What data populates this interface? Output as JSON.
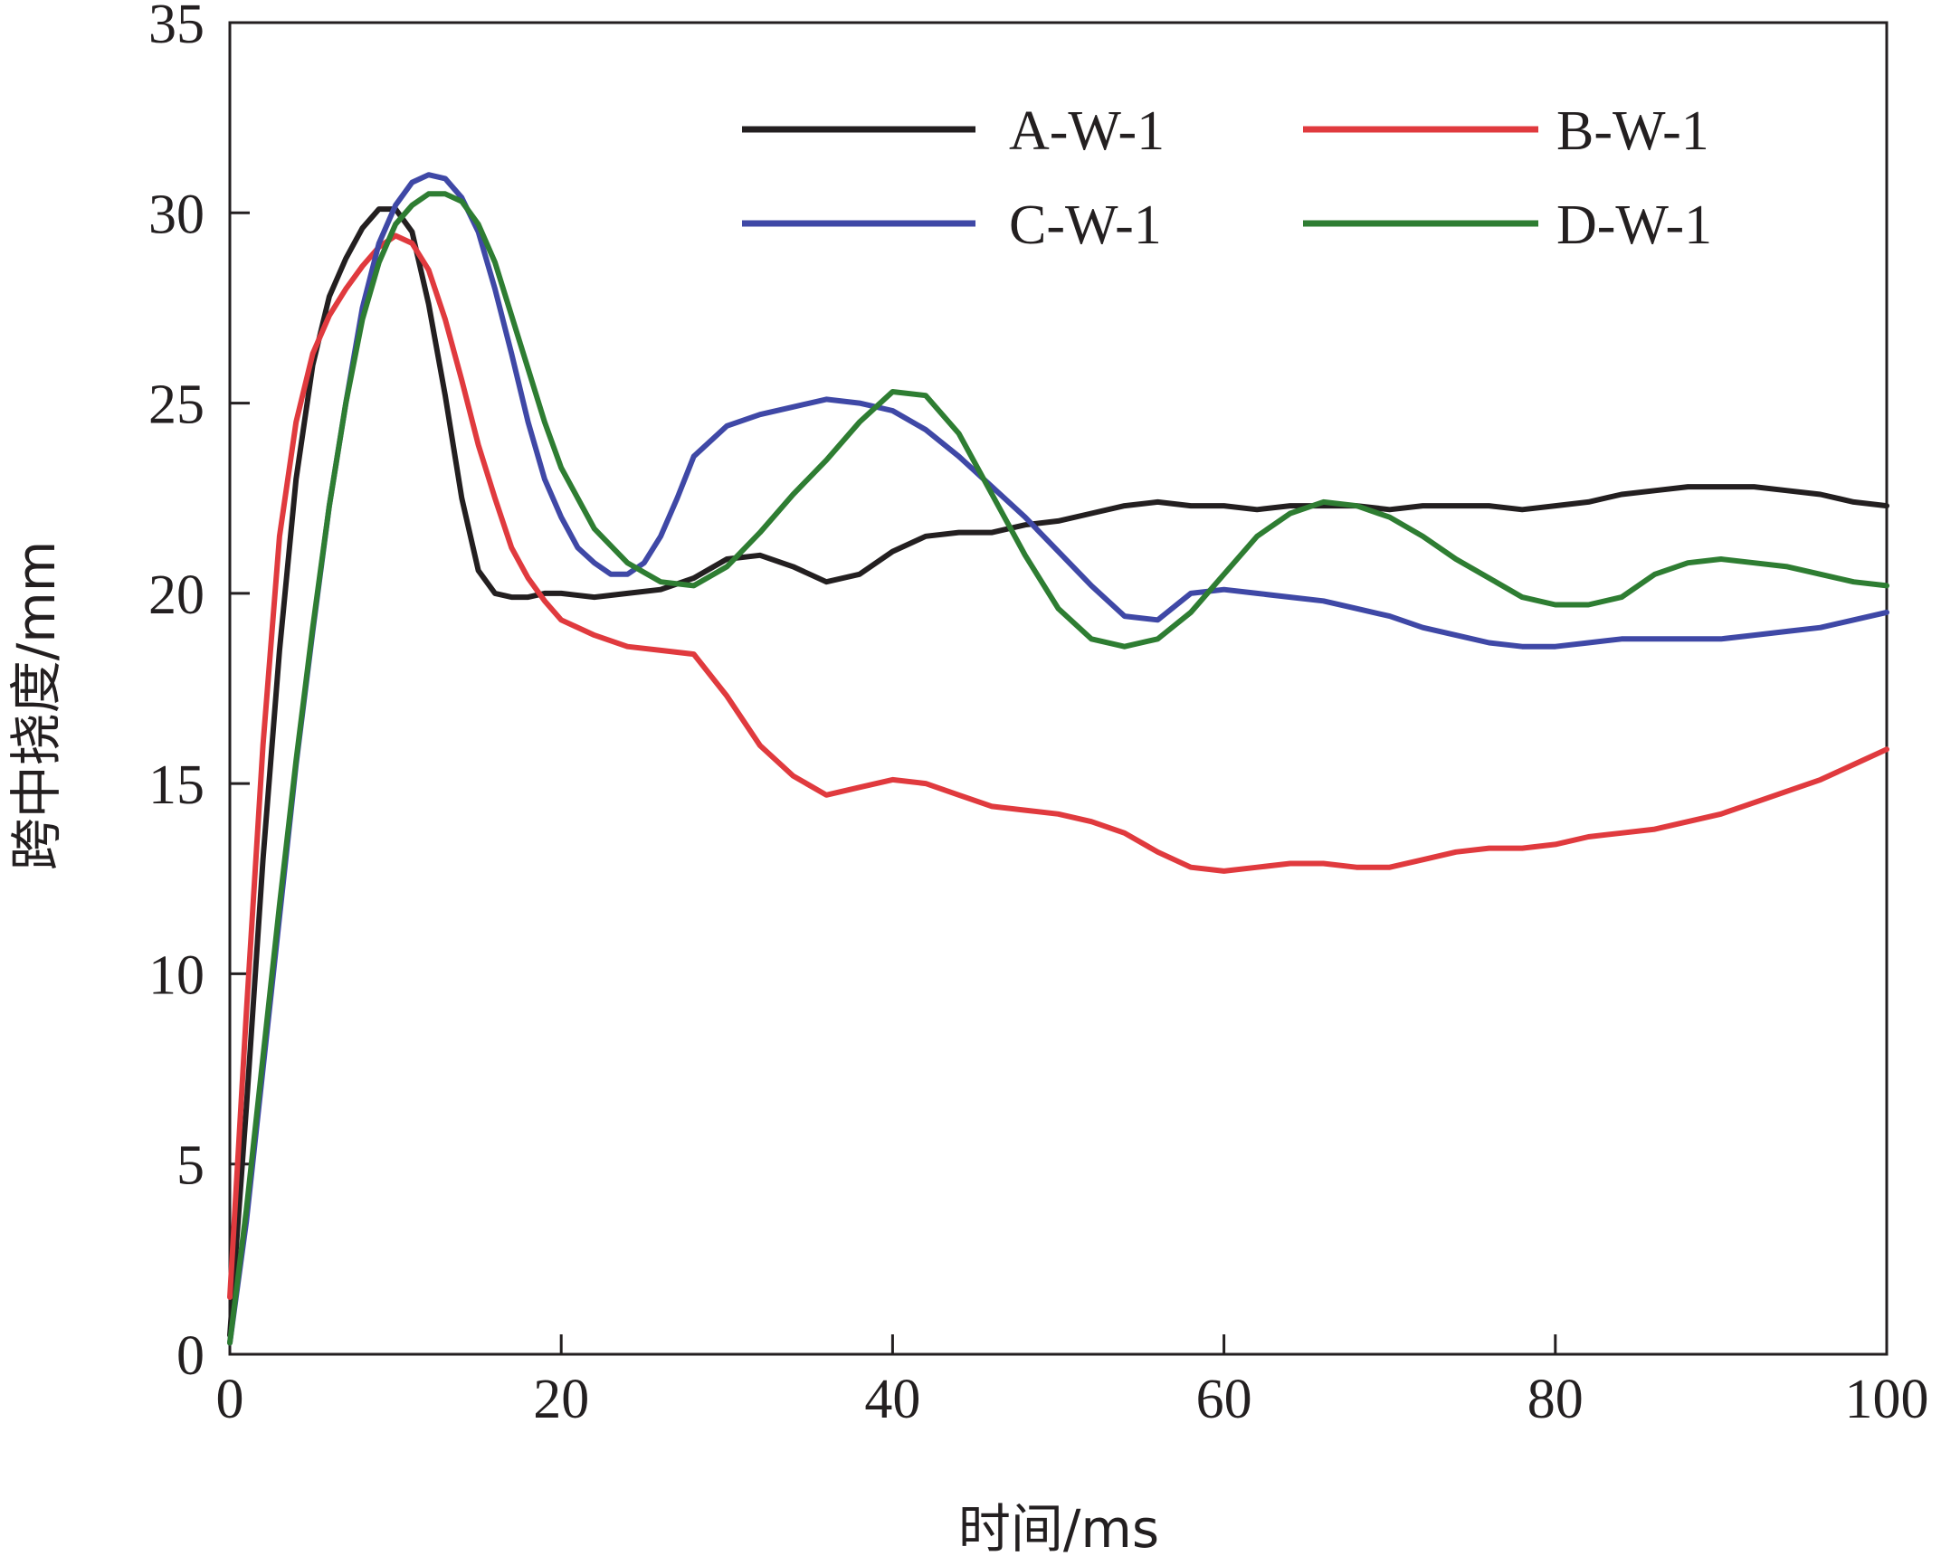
{
  "chart_data": {
    "type": "line",
    "xlabel": "时间/ms",
    "ylabel": "跨中挠度/mm",
    "xlim": [
      0,
      100
    ],
    "ylim": [
      0,
      35
    ],
    "xticks": [
      "0",
      "20",
      "40",
      "60",
      "80",
      "100"
    ],
    "yticks": [
      "0",
      "5",
      "10",
      "15",
      "20",
      "25",
      "30",
      "35"
    ],
    "grid": false,
    "legend_position": "top-right",
    "series": [
      {
        "name": "A-W-1",
        "color": "#231f20",
        "x": [
          0,
          1,
          2,
          3,
          4,
          5,
          6,
          7,
          8,
          9,
          10,
          11,
          12,
          13,
          14,
          15,
          16,
          17,
          18,
          19,
          20,
          22,
          24,
          26,
          28,
          30,
          32,
          34,
          36,
          38,
          40,
          42,
          44,
          46,
          48,
          50,
          52,
          54,
          56,
          58,
          60,
          62,
          64,
          66,
          68,
          70,
          72,
          74,
          76,
          78,
          80,
          82,
          84,
          86,
          88,
          90,
          92,
          94,
          96,
          98,
          100
        ],
        "y": [
          0.5,
          6.5,
          13,
          18.5,
          23,
          26,
          27.8,
          28.8,
          29.6,
          30.1,
          30.1,
          29.5,
          27.6,
          25.2,
          22.5,
          20.6,
          20.0,
          19.9,
          19.9,
          20.0,
          20.0,
          19.9,
          20.0,
          20.1,
          20.4,
          20.9,
          21.0,
          20.7,
          20.3,
          20.5,
          21.1,
          21.5,
          21.6,
          21.6,
          21.8,
          21.9,
          22.1,
          22.3,
          22.4,
          22.3,
          22.3,
          22.2,
          22.3,
          22.3,
          22.3,
          22.2,
          22.3,
          22.3,
          22.3,
          22.2,
          22.3,
          22.4,
          22.6,
          22.7,
          22.8,
          22.8,
          22.8,
          22.7,
          22.6,
          22.4,
          22.3
        ]
      },
      {
        "name": "B-W-1",
        "color": "#e03a3e",
        "x": [
          0,
          1,
          2,
          3,
          4,
          5,
          6,
          7,
          8,
          9,
          10,
          11,
          12,
          13,
          14,
          15,
          16,
          17,
          18,
          19,
          20,
          22,
          24,
          26,
          28,
          30,
          32,
          34,
          36,
          38,
          40,
          42,
          44,
          46,
          48,
          50,
          52,
          54,
          56,
          58,
          60,
          62,
          64,
          66,
          68,
          70,
          72,
          74,
          76,
          78,
          80,
          82,
          84,
          86,
          88,
          90,
          92,
          94,
          96,
          98,
          100
        ],
        "y": [
          1.5,
          9,
          16,
          21.5,
          24.5,
          26.3,
          27.3,
          28.0,
          28.6,
          29.1,
          29.4,
          29.2,
          28.5,
          27.2,
          25.6,
          23.9,
          22.5,
          21.2,
          20.4,
          19.8,
          19.3,
          18.9,
          18.6,
          18.5,
          18.4,
          17.3,
          16.0,
          15.2,
          14.7,
          14.9,
          15.1,
          15.0,
          14.7,
          14.4,
          14.3,
          14.2,
          14.0,
          13.7,
          13.2,
          12.8,
          12.7,
          12.8,
          12.9,
          12.9,
          12.8,
          12.8,
          13.0,
          13.2,
          13.3,
          13.3,
          13.4,
          13.6,
          13.7,
          13.8,
          14.0,
          14.2,
          14.5,
          14.8,
          15.1,
          15.5,
          15.9
        ]
      },
      {
        "name": "C-W-1",
        "color": "#3f48a6",
        "x": [
          0,
          1,
          2,
          3,
          4,
          5,
          6,
          7,
          8,
          9,
          10,
          11,
          12,
          13,
          14,
          15,
          16,
          17,
          18,
          19,
          20,
          21,
          22,
          23,
          24,
          25,
          26,
          27,
          28,
          30,
          32,
          34,
          36,
          38,
          40,
          42,
          44,
          46,
          48,
          50,
          52,
          54,
          56,
          58,
          60,
          62,
          64,
          66,
          68,
          70,
          72,
          74,
          76,
          78,
          80,
          82,
          84,
          86,
          88,
          90,
          92,
          94,
          96,
          98,
          100
        ],
        "y": [
          0.3,
          3.5,
          7.5,
          11.5,
          15.5,
          19.0,
          22.3,
          25.0,
          27.5,
          29.2,
          30.2,
          30.8,
          31.0,
          30.9,
          30.4,
          29.5,
          28.0,
          26.3,
          24.5,
          23.0,
          22.0,
          21.2,
          20.8,
          20.5,
          20.5,
          20.8,
          21.5,
          22.5,
          23.6,
          24.4,
          24.7,
          24.9,
          25.1,
          25.0,
          24.8,
          24.3,
          23.6,
          22.8,
          22.0,
          21.1,
          20.2,
          19.4,
          19.3,
          20.0,
          20.1,
          20.0,
          19.9,
          19.8,
          19.6,
          19.4,
          19.1,
          18.9,
          18.7,
          18.6,
          18.6,
          18.7,
          18.8,
          18.8,
          18.8,
          18.8,
          18.9,
          19.0,
          19.1,
          19.3,
          19.5
        ]
      },
      {
        "name": "D-W-1",
        "color": "#2e7d32",
        "x": [
          0,
          1,
          2,
          3,
          4,
          5,
          6,
          7,
          8,
          9,
          10,
          11,
          12,
          13,
          14,
          15,
          16,
          17,
          18,
          19,
          20,
          22,
          24,
          26,
          28,
          30,
          32,
          34,
          36,
          38,
          40,
          42,
          44,
          46,
          48,
          50,
          52,
          54,
          56,
          58,
          60,
          62,
          64,
          66,
          68,
          70,
          72,
          74,
          76,
          78,
          80,
          82,
          84,
          86,
          88,
          90,
          92,
          94,
          96,
          98,
          100
        ],
        "y": [
          0.3,
          3.8,
          7.8,
          11.8,
          15.6,
          19.1,
          22.3,
          25.0,
          27.2,
          28.7,
          29.7,
          30.2,
          30.5,
          30.5,
          30.3,
          29.7,
          28.7,
          27.3,
          25.9,
          24.5,
          23.3,
          21.7,
          20.8,
          20.3,
          20.2,
          20.7,
          21.6,
          22.6,
          23.5,
          24.5,
          25.3,
          25.2,
          24.2,
          22.6,
          21.0,
          19.6,
          18.8,
          18.6,
          18.8,
          19.5,
          20.5,
          21.5,
          22.1,
          22.4,
          22.3,
          22.0,
          21.5,
          20.9,
          20.4,
          19.9,
          19.7,
          19.7,
          19.9,
          20.5,
          20.8,
          20.9,
          20.8,
          20.7,
          20.5,
          20.3,
          20.2
        ]
      }
    ]
  }
}
